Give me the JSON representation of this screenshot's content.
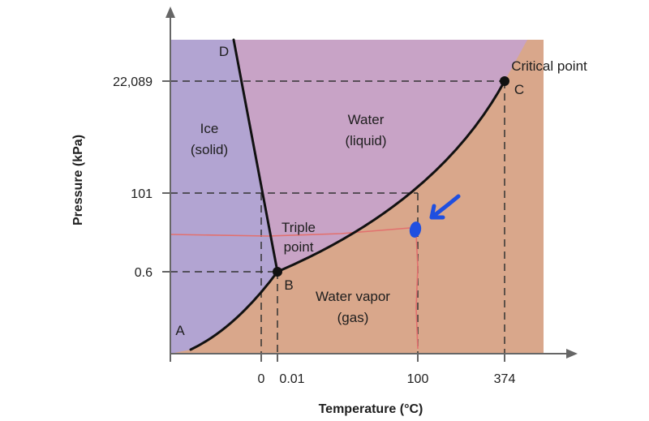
{
  "diagram": {
    "axes": {
      "x_title": "Temperature (°C)",
      "y_title": "Pressure (kPa)",
      "x_ticks": [
        "0",
        "0.01",
        "100",
        "374"
      ],
      "y_ticks": [
        "22,089",
        "101",
        "0.6"
      ]
    },
    "regions": {
      "ice": [
        "Ice",
        "(solid)"
      ],
      "liquid": [
        "Water",
        "(liquid)"
      ],
      "vapor": [
        "Water vapor",
        "(gas)"
      ]
    },
    "points": {
      "a": "A",
      "b": "B",
      "c": "C",
      "d": "D",
      "triple": [
        "Triple",
        "point"
      ],
      "critical": "Critical point"
    },
    "colors": {
      "ice": "#b2a4d2",
      "liquid": "#c8a3c6",
      "vapor": "#d9a78b",
      "curve": "#111111",
      "annotation_red": "#e2706e",
      "annotation_blue": "#1f4fe0"
    }
  }
}
